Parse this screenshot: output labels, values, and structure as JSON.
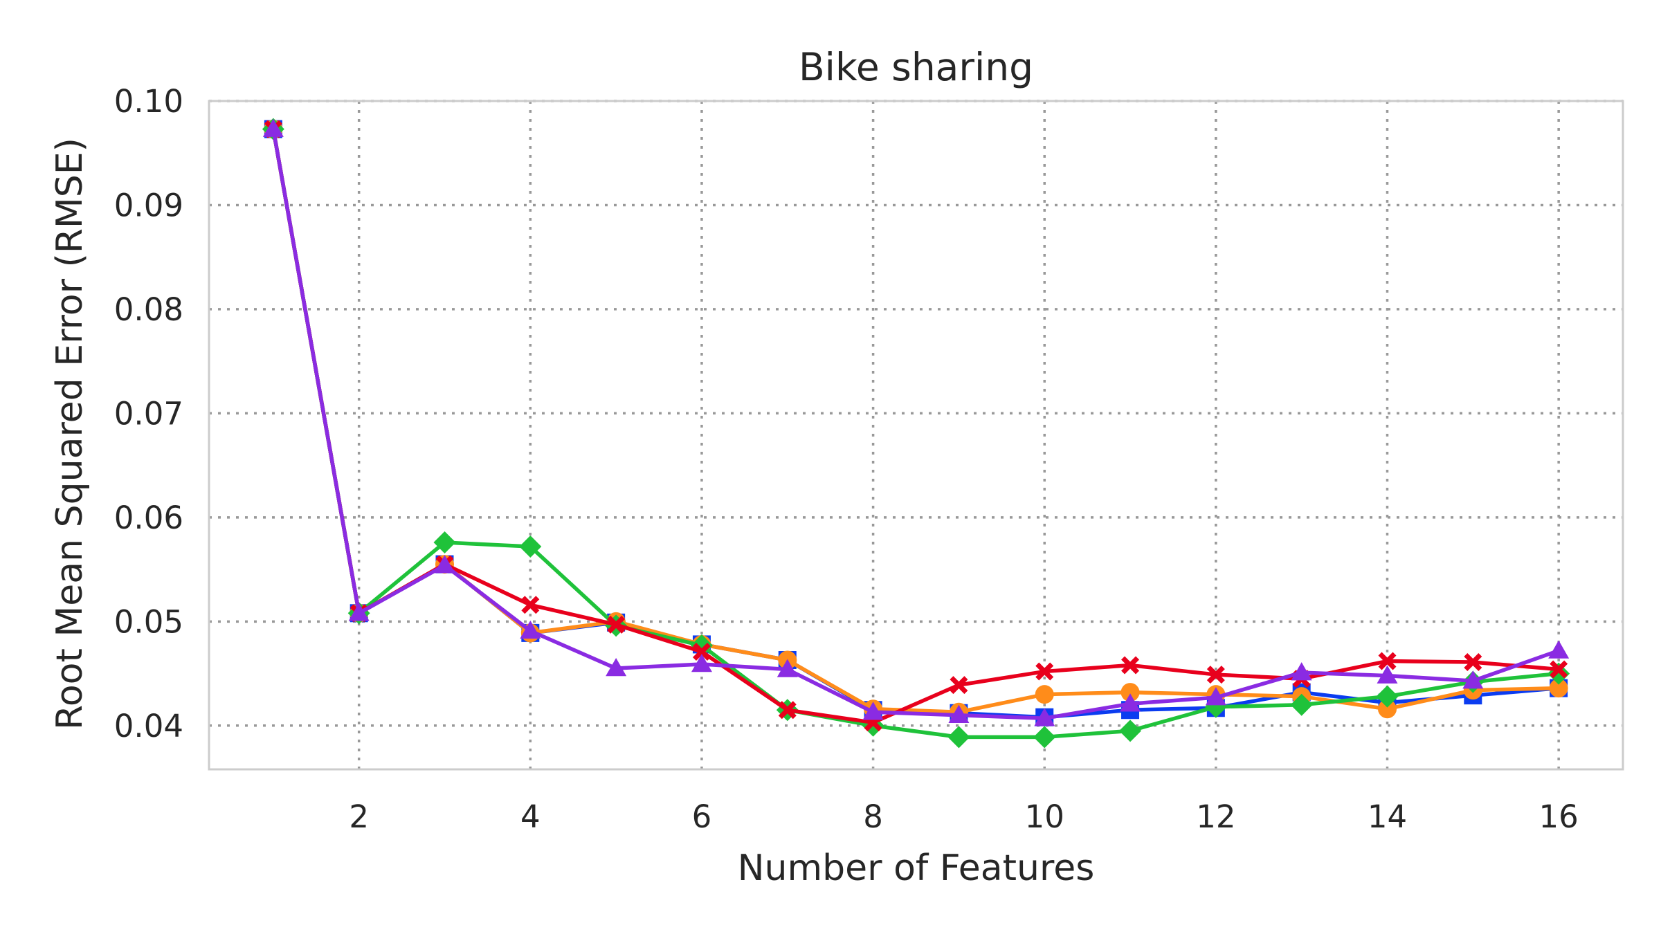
{
  "chart_data": {
    "type": "line",
    "title": "Bike sharing",
    "xlabel": "Number of Features",
    "ylabel": "Root Mean Squared Error (RMSE)",
    "xlim": [
      0.25,
      16.75
    ],
    "ylim": [
      0.0358,
      0.1
    ],
    "xticks": [
      "2",
      "4",
      "6",
      "8",
      "10",
      "12",
      "14",
      "16"
    ],
    "yticks": [
      "0.04",
      "0.05",
      "0.06",
      "0.07",
      "0.08",
      "0.09",
      "0.10"
    ],
    "grid": true,
    "x": [
      1,
      2,
      3,
      4,
      5,
      6,
      7,
      8,
      9,
      10,
      11,
      12,
      13,
      14,
      15,
      16
    ],
    "series": [
      {
        "color": "#0b3cf0",
        "marker": "square",
        "values": [
          0.0973,
          0.0508,
          0.0555,
          0.0489,
          0.0499,
          0.0478,
          0.0463,
          0.0415,
          0.0412,
          0.0408,
          0.0415,
          0.0417,
          0.0432,
          0.0422,
          0.0429,
          0.0436
        ]
      },
      {
        "color": "#ff8c1a",
        "marker": "circle",
        "values": [
          0.0973,
          0.0508,
          0.0555,
          0.0489,
          0.05,
          0.0478,
          0.0463,
          0.0416,
          0.0413,
          0.043,
          0.0432,
          0.043,
          0.0428,
          0.0416,
          0.0434,
          0.0436
        ]
      },
      {
        "color": "#1fc23a",
        "marker": "diamond",
        "values": [
          0.0973,
          0.0508,
          0.0576,
          0.0572,
          0.0496,
          0.0477,
          0.0415,
          0.04,
          0.0389,
          0.0389,
          0.0395,
          0.0418,
          0.042,
          0.0428,
          0.0442,
          0.045
        ]
      },
      {
        "color": "#e8001c",
        "marker": "x",
        "values": [
          0.0973,
          0.0508,
          0.0555,
          0.0516,
          0.0497,
          0.0471,
          0.0415,
          0.0403,
          0.0439,
          0.0452,
          0.0458,
          0.0449,
          0.0445,
          0.0462,
          0.0461,
          0.0454
        ]
      },
      {
        "color": "#8a2be2",
        "marker": "triangle",
        "values": [
          0.0973,
          0.0508,
          0.0554,
          0.0491,
          0.0455,
          0.0459,
          0.0454,
          0.0413,
          0.041,
          0.0407,
          0.0421,
          0.0427,
          0.0451,
          0.0448,
          0.0443,
          0.0472
        ]
      }
    ]
  }
}
